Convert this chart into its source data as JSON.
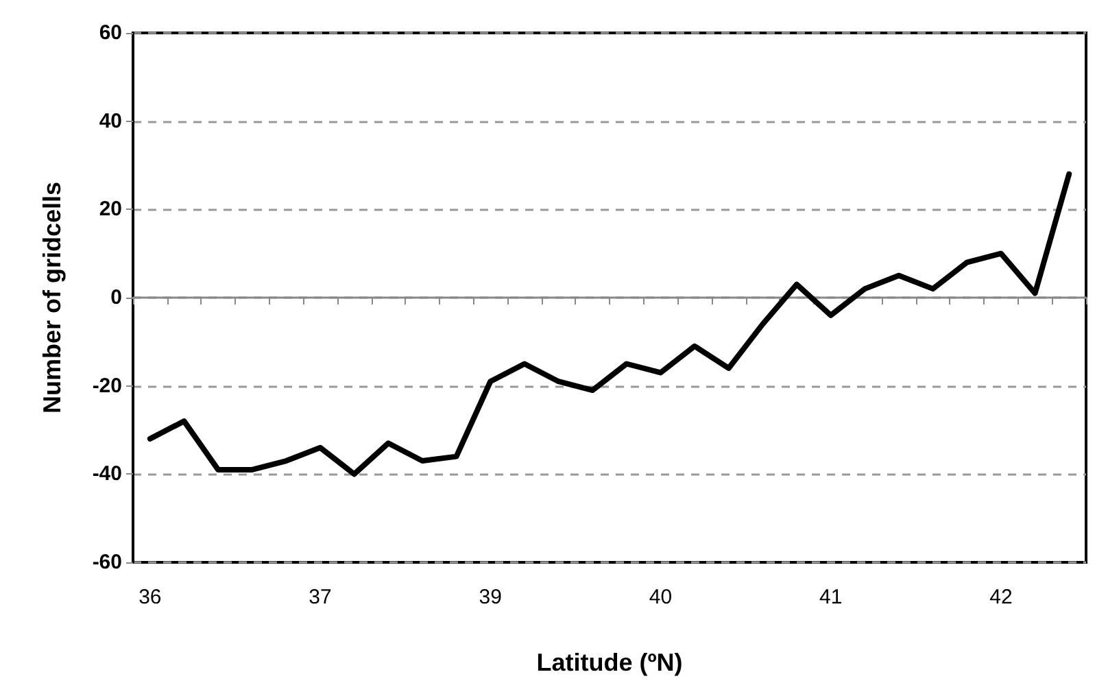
{
  "chart_data": {
    "type": "line",
    "xlabel": "Latitude (ºN)",
    "ylabel": "Number of gridcells",
    "categories": [
      "36",
      null,
      null,
      null,
      null,
      "37",
      null,
      null,
      null,
      null,
      "39",
      null,
      null,
      null,
      null,
      "40",
      null,
      null,
      null,
      null,
      "41",
      null,
      null,
      null,
      null,
      "42",
      null,
      null
    ],
    "series": [
      {
        "color": "#000000",
        "values": [
          -32,
          -28,
          -39,
          -39,
          -37,
          -34,
          -40,
          -33,
          -37,
          -36,
          -19,
          -15,
          -19,
          -21,
          -15,
          -17,
          -11,
          -16,
          -6,
          3,
          -4,
          2,
          5,
          2,
          8,
          10,
          1,
          28
        ]
      }
    ],
    "ylim": [
      -60,
      60
    ],
    "yticks": [
      -60,
      -40,
      -20,
      0,
      20,
      40,
      60
    ],
    "grid": "y",
    "marker": "none",
    "line_style": "solid"
  }
}
